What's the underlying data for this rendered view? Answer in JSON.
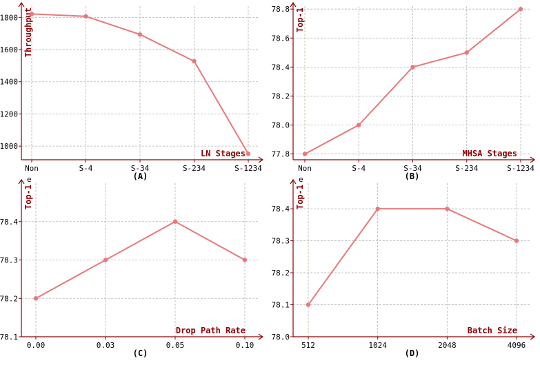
{
  "colors": {
    "line": "#e8787a",
    "axis": "#8b0000",
    "grid": "#b3b3b3"
  },
  "chart_data": [
    {
      "id": "A",
      "type": "line",
      "caption": "(A)",
      "xlabel": "LN Stages",
      "ylabel": "Throughput",
      "categories": [
        "Non",
        "S-4",
        "S-34",
        "S-234",
        "S-1234"
      ],
      "values": [
        1822,
        1807,
        1694,
        1528,
        952
      ],
      "yticks": [
        1000,
        1200,
        1400,
        1600,
        1800
      ],
      "ylim": [
        915,
        1870
      ],
      "ytick_decimals": 0,
      "offset_text": "",
      "grid": true
    },
    {
      "id": "B",
      "type": "line",
      "caption": "(B)",
      "xlabel": "MHSA Stages",
      "ylabel": "Top-1",
      "categories": [
        "Non",
        "S-4",
        "S-34",
        "S-234",
        "S-1234"
      ],
      "values": [
        77.8,
        78.0,
        78.4,
        78.5,
        78.8
      ],
      "yticks": [
        77.8,
        78.0,
        78.2,
        78.4,
        78.6,
        78.8
      ],
      "ylim": [
        77.76,
        78.82
      ],
      "ytick_decimals": 1,
      "offset_text": "",
      "grid": true
    },
    {
      "id": "C",
      "type": "line",
      "caption": "(C)",
      "xlabel": "Drop Path Rate",
      "ylabel": "Top-1",
      "categories": [
        "0.00",
        "0.03",
        "0.05",
        "0.10"
      ],
      "values": [
        78.2,
        78.3,
        78.4,
        78.3
      ],
      "yticks": [
        78.1,
        78.2,
        78.3,
        78.4
      ],
      "ylim": [
        78.1,
        78.5
      ],
      "ytick_decimals": 1,
      "offset_text": "e",
      "grid": true
    },
    {
      "id": "D",
      "type": "line",
      "caption": "(D)",
      "xlabel": "Batch Size",
      "ylabel": "Top-1",
      "categories": [
        "512",
        "1024",
        "2048",
        "4096"
      ],
      "values": [
        78.1,
        78.4,
        78.4,
        78.3
      ],
      "yticks": [
        78.0,
        78.1,
        78.2,
        78.3,
        78.4
      ],
      "ylim": [
        78.0,
        78.48
      ],
      "ytick_decimals": 1,
      "offset_text": "e",
      "grid": true
    }
  ]
}
